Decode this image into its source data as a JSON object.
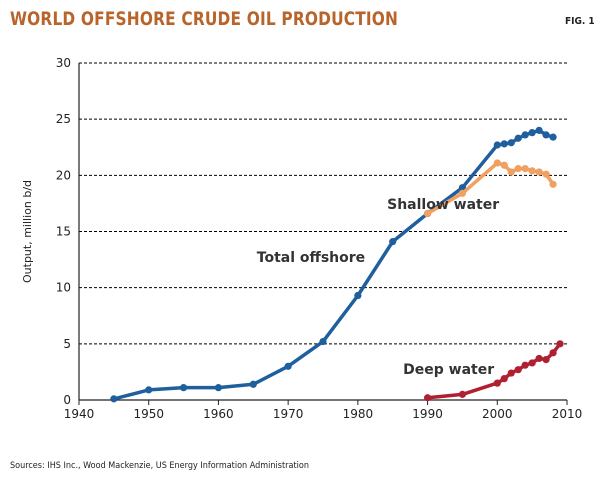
{
  "header": {
    "title": "WORLD OFFSHORE CRUDE OIL PRODUCTION",
    "fig_label": "FIG. 1"
  },
  "footer": {
    "sources": "Sources: IHS Inc., Wood Mackenzie, US Energy Information Administration"
  },
  "colors": {
    "total": "#1f5f9e",
    "shallow": "#f0a060",
    "deep": "#b02030",
    "grid": "#000000",
    "axis": "#222222"
  },
  "chart_data": {
    "type": "line",
    "title": "World offshore crude oil production",
    "xlabel": "",
    "ylabel": "Output, million b/d",
    "xlim": [
      1940,
      2010
    ],
    "ylim": [
      0,
      30
    ],
    "xticks": [
      1940,
      1950,
      1960,
      1970,
      1980,
      1990,
      2000,
      2010
    ],
    "yticks": [
      0,
      5,
      10,
      15,
      20,
      25,
      30
    ],
    "grid": true,
    "series": [
      {
        "name": "Total offshore",
        "color_key": "total",
        "x": [
          1945,
          1950,
          1955,
          1960,
          1965,
          1970,
          1975,
          1980,
          1985,
          1990,
          1995,
          2000,
          2001,
          2002,
          2003,
          2004,
          2005,
          2006,
          2007,
          2008
        ],
        "y": [
          0.1,
          0.9,
          1.1,
          1.1,
          1.4,
          3.0,
          5.2,
          9.3,
          14.1,
          16.6,
          18.9,
          22.7,
          22.8,
          22.9,
          23.3,
          23.6,
          23.8,
          24.0,
          23.6,
          23.4
        ]
      },
      {
        "name": "Shallow water",
        "color_key": "shallow",
        "x": [
          1990,
          1995,
          2000,
          2001,
          2002,
          2003,
          2004,
          2005,
          2006,
          2007,
          2008
        ],
        "y": [
          16.6,
          18.4,
          21.1,
          20.9,
          20.3,
          20.6,
          20.6,
          20.4,
          20.3,
          20.1,
          19.2
        ]
      },
      {
        "name": "Deep water",
        "color_key": "deep",
        "x": [
          1990,
          1995,
          2000,
          2001,
          2002,
          2003,
          2004,
          2005,
          2006,
          2007,
          2008,
          2009
        ],
        "y": [
          0.2,
          0.5,
          1.5,
          1.9,
          2.4,
          2.7,
          3.1,
          3.3,
          3.7,
          3.6,
          4.2,
          5.0
        ]
      }
    ],
    "annotations": [
      {
        "text": "Total offshore",
        "x": 1965.5,
        "y": 12.3
      },
      {
        "text": "Shallow water",
        "x": 1984.2,
        "y": 17.0
      },
      {
        "text": "Deep water",
        "x": 1986.5,
        "y": 2.3
      }
    ]
  }
}
